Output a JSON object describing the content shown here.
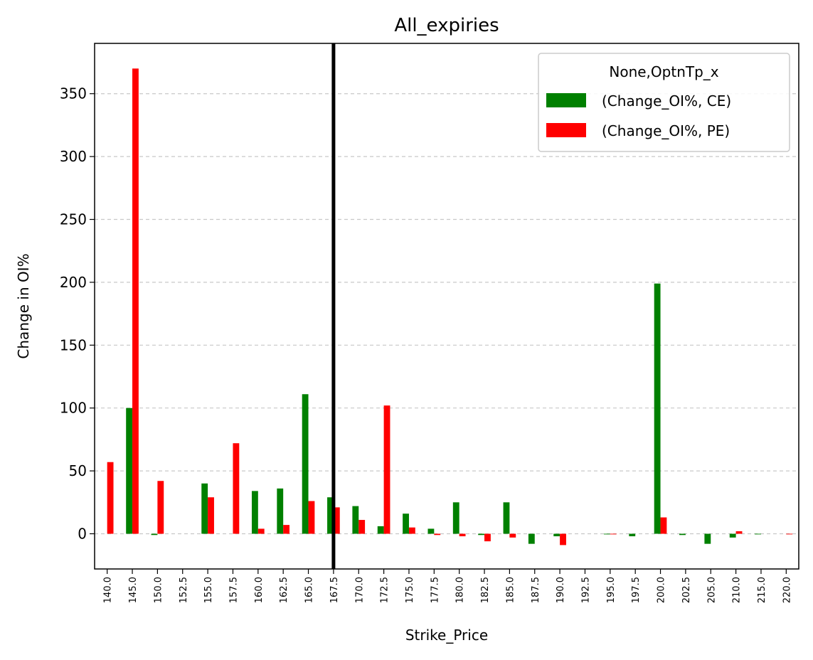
{
  "chart_data": {
    "type": "bar",
    "title": "All_expiries",
    "xlabel": "Strike_Price",
    "ylabel": "Change in OI%",
    "ylim": [
      -28,
      390
    ],
    "yticks": [
      0,
      50,
      100,
      150,
      200,
      250,
      300,
      350
    ],
    "grid": "y-dashed",
    "legend": {
      "title": "None,OptnTp_x",
      "placement": "top-right"
    },
    "categories": [
      "140.0",
      "145.0",
      "150.0",
      "152.5",
      "155.0",
      "157.5",
      "160.0",
      "162.5",
      "165.0",
      "167.5",
      "170.0",
      "172.5",
      "175.0",
      "177.5",
      "180.0",
      "182.5",
      "185.0",
      "187.5",
      "190.0",
      "192.5",
      "195.0",
      "197.5",
      "200.0",
      "202.5",
      "205.0",
      "210.0",
      "215.0",
      "220.0"
    ],
    "series": [
      {
        "name": "(Change_OI%, CE)",
        "color": "#008000",
        "values": [
          0,
          100,
          -1,
          0,
          40,
          0,
          34,
          36,
          111,
          29,
          22,
          6,
          16,
          4,
          25,
          -1,
          25,
          -8,
          -2,
          0,
          -0.5,
          -2,
          199,
          -1,
          -8,
          -3,
          -0.5,
          0
        ]
      },
      {
        "name": "(Change_OI%, PE)",
        "color": "#ff0000",
        "values": [
          57,
          370,
          42,
          0,
          29,
          72,
          4,
          7,
          26,
          21,
          11,
          102,
          5,
          -1,
          -2,
          -6,
          -3,
          0,
          -9,
          0,
          -0.5,
          0,
          13,
          0,
          0,
          2,
          0,
          -0.5
        ]
      }
    ],
    "reference_line": {
      "category": "167.5",
      "color": "#000000"
    }
  }
}
